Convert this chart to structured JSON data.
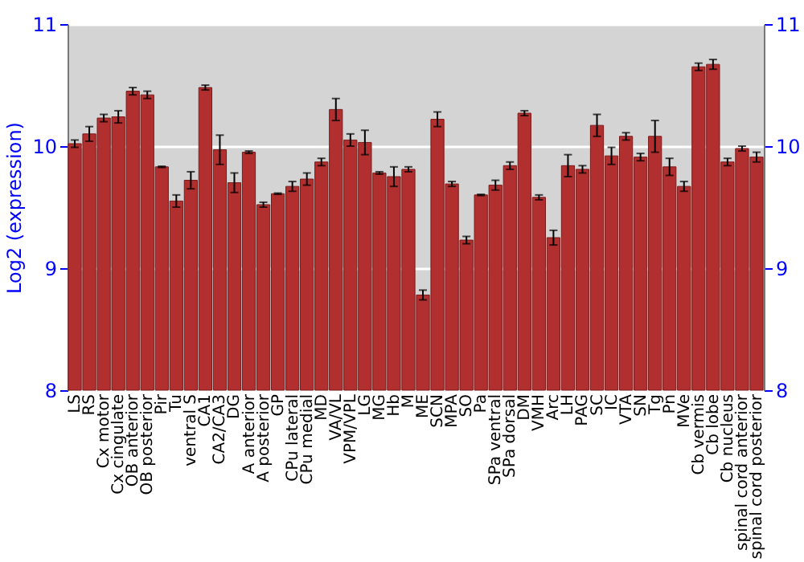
{
  "chart_data": {
    "type": "bar",
    "ylabel": "Log2 (expression)",
    "categories": [
      "LS",
      "RS",
      "Cx motor",
      "Cx cingulate",
      "OB anterior",
      "OB posterior",
      "Pir",
      "Tu",
      "ventral S",
      "CA1",
      "CA2/CA3",
      "DG",
      "A anterior",
      "A posterior",
      "GP",
      "CPu lateral",
      "CPu medial",
      "MD",
      "VA/VL",
      "VPM/VPL",
      "LG",
      "MG",
      "Hb",
      "M",
      "ME",
      "SCN",
      "MPA",
      "SO",
      "Pa",
      "SPa ventral",
      "SPa dorsal",
      "DM",
      "VMH",
      "Arc",
      "LH",
      "PAG",
      "SC",
      "IC",
      "VTA",
      "SN",
      "Tg",
      "Pn",
      "MVe",
      "Cb vermis",
      "Cb lobe",
      "Cb nucleus",
      "spinal cord anterior",
      "spinal cord posterior"
    ],
    "values": [
      10.02,
      10.1,
      10.23,
      10.24,
      10.45,
      10.42,
      9.83,
      9.55,
      9.72,
      10.48,
      9.97,
      9.7,
      9.95,
      9.52,
      9.61,
      9.67,
      9.73,
      9.87,
      10.3,
      10.05,
      10.03,
      9.78,
      9.75,
      9.81,
      8.78,
      10.22,
      9.69,
      9.23,
      9.6,
      9.68,
      9.84,
      10.27,
      9.58,
      9.25,
      9.84,
      9.81,
      10.17,
      9.92,
      10.08,
      9.91,
      10.08,
      9.83,
      9.67,
      10.65,
      10.67,
      9.87,
      9.98,
      9.91
    ],
    "errors": [
      0.03,
      0.06,
      0.03,
      0.05,
      0.03,
      0.03,
      0.005,
      0.05,
      0.07,
      0.02,
      0.12,
      0.08,
      0.01,
      0.02,
      0.005,
      0.04,
      0.05,
      0.03,
      0.09,
      0.05,
      0.1,
      0.01,
      0.08,
      0.02,
      0.04,
      0.06,
      0.02,
      0.03,
      0.005,
      0.04,
      0.03,
      0.02,
      0.02,
      0.06,
      0.09,
      0.03,
      0.09,
      0.07,
      0.03,
      0.03,
      0.13,
      0.07,
      0.04,
      0.03,
      0.04,
      0.03,
      0.02,
      0.04
    ],
    "color": "#b22f2f",
    "ylim": [
      8,
      11
    ],
    "yticks": [
      8,
      9,
      10,
      11
    ],
    "y2lim": [
      8,
      11
    ],
    "y2ticks": [
      8,
      9,
      10,
      11
    ],
    "grid": "y"
  }
}
